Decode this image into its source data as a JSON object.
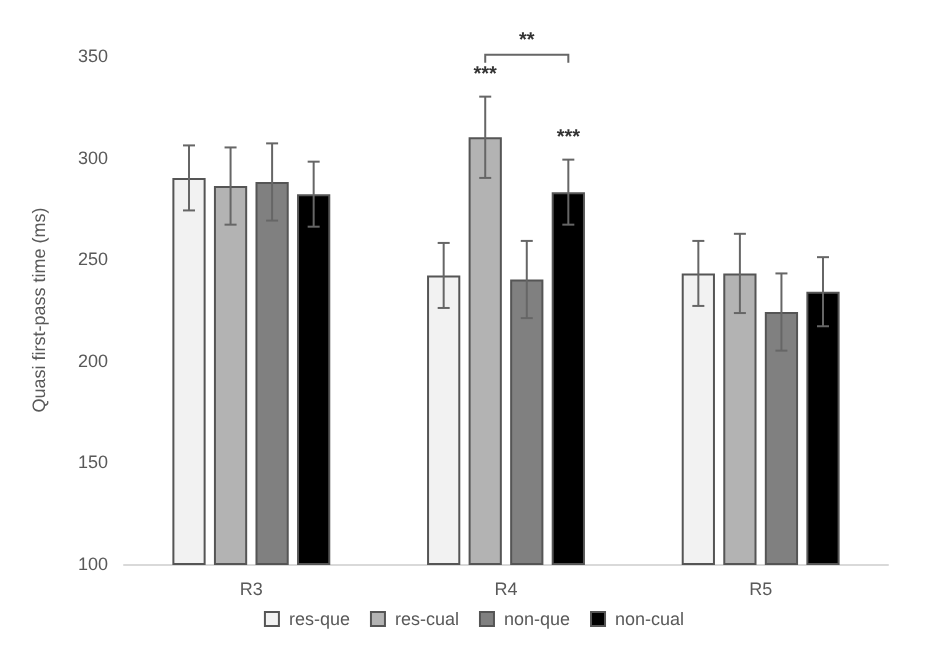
{
  "chart_data": {
    "type": "bar",
    "ylabel": "Quasi first-pass time (ms)",
    "categories": [
      "R3",
      "R4",
      "R5"
    ],
    "series": [
      {
        "name": "res-que",
        "color": "#f2f2f2",
        "values": [
          290,
          242,
          243
        ],
        "errors": [
          16,
          16,
          16
        ]
      },
      {
        "name": "res-cual",
        "color": "#b3b3b3",
        "values": [
          286,
          310,
          243
        ],
        "errors": [
          19,
          20,
          19.5
        ]
      },
      {
        "name": "non-que",
        "color": "#808080",
        "values": [
          288,
          240,
          224
        ],
        "errors": [
          19,
          19,
          19
        ]
      },
      {
        "name": "non-cual",
        "color": "#000000",
        "values": [
          282,
          283,
          234
        ],
        "errors": [
          16,
          16,
          17
        ]
      }
    ],
    "ylim": [
      100,
      350
    ],
    "yticks": [
      100,
      150,
      200,
      250,
      300,
      350
    ],
    "grid": false,
    "legend": "bottom",
    "annotations": [
      "***",
      "**",
      "***"
    ]
  }
}
